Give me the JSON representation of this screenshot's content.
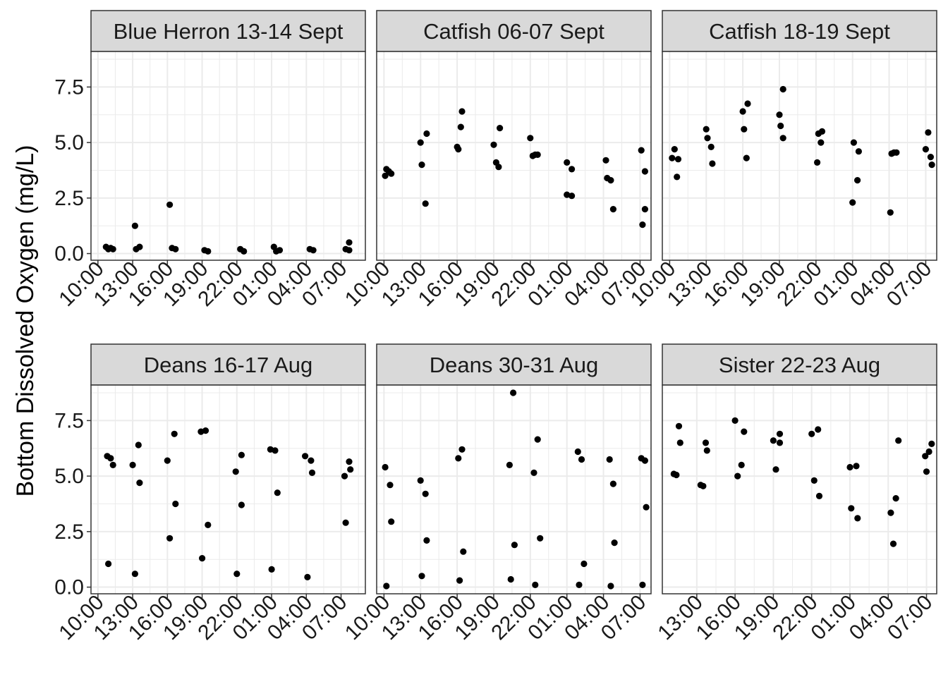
{
  "y_axis_title": "Bottom Dissolved Oxygen (mg/L)",
  "colors": {
    "point": "#000000",
    "strip_fill": "#d9d9d9",
    "grid": "#ebebeb",
    "frame": "#333333"
  },
  "chart_data": {
    "type": "scatter",
    "layout": "facet_wrap 2 rows x 3 columns",
    "ylabel": "Bottom Dissolved Oxygen (mg/L)",
    "ylim": [
      -0.3,
      9.1
    ],
    "yticks": [
      0.0,
      2.5,
      5.0,
      7.5
    ],
    "ytick_labels": [
      "0.0",
      "2.5",
      "5.0",
      "7.5"
    ],
    "x_unit": "hours since 10:00 on day 1 of each sampling event",
    "grid": true,
    "panels": [
      {
        "title": "Blue Herron 13-14 Sept",
        "xlim": [
          -0.6,
          23.1
        ],
        "xticks": [
          {
            "x": 0,
            "label": "10:00"
          },
          {
            "x": 3,
            "label": "13:00"
          },
          {
            "x": 6,
            "label": "16:00"
          },
          {
            "x": 9,
            "label": "19:00"
          },
          {
            "x": 12,
            "label": "22:00"
          },
          {
            "x": 15,
            "label": "01:00"
          },
          {
            "x": 18,
            "label": "04:00"
          },
          {
            "x": 21,
            "label": "07:00"
          }
        ],
        "points": [
          [
            0.7,
            0.3
          ],
          [
            0.9,
            0.2
          ],
          [
            1.1,
            0.25
          ],
          [
            1.3,
            0.2
          ],
          [
            3.2,
            1.25
          ],
          [
            3.3,
            0.2
          ],
          [
            3.6,
            0.3
          ],
          [
            6.2,
            2.2
          ],
          [
            6.4,
            0.25
          ],
          [
            6.7,
            0.2
          ],
          [
            9.2,
            0.15
          ],
          [
            9.5,
            0.1
          ],
          [
            12.3,
            0.2
          ],
          [
            12.6,
            0.1
          ],
          [
            15.2,
            0.3
          ],
          [
            15.4,
            0.1
          ],
          [
            15.7,
            0.15
          ],
          [
            18.3,
            0.2
          ],
          [
            18.6,
            0.15
          ],
          [
            21.4,
            0.2
          ],
          [
            21.7,
            0.5
          ],
          [
            21.7,
            0.15
          ]
        ]
      },
      {
        "title": "Catfish 06-07 Sept",
        "xlim": [
          -0.6,
          21.9
        ],
        "xticks": [
          {
            "x": 0,
            "label": "10:00"
          },
          {
            "x": 3,
            "label": "13:00"
          },
          {
            "x": 6,
            "label": "16:00"
          },
          {
            "x": 9,
            "label": "19:00"
          },
          {
            "x": 12,
            "label": "22:00"
          },
          {
            "x": 15,
            "label": "01:00"
          },
          {
            "x": 18,
            "label": "04:00"
          },
          {
            "x": 21,
            "label": "07:00"
          }
        ],
        "points": [
          [
            0.1,
            3.5
          ],
          [
            0.2,
            3.8
          ],
          [
            0.4,
            3.7
          ],
          [
            0.6,
            3.6
          ],
          [
            3.0,
            5.0
          ],
          [
            3.1,
            4.0
          ],
          [
            3.4,
            2.25
          ],
          [
            3.5,
            5.4
          ],
          [
            6.0,
            4.8
          ],
          [
            6.1,
            4.7
          ],
          [
            6.3,
            5.7
          ],
          [
            6.4,
            6.4
          ],
          [
            9.0,
            4.9
          ],
          [
            9.2,
            4.1
          ],
          [
            9.4,
            3.9
          ],
          [
            9.5,
            5.65
          ],
          [
            12.0,
            5.2
          ],
          [
            12.2,
            4.4
          ],
          [
            12.4,
            4.45
          ],
          [
            12.6,
            4.45
          ],
          [
            15.0,
            4.1
          ],
          [
            15.0,
            2.65
          ],
          [
            15.4,
            2.6
          ],
          [
            15.4,
            3.8
          ],
          [
            18.2,
            4.2
          ],
          [
            18.3,
            3.4
          ],
          [
            18.6,
            3.3
          ],
          [
            18.8,
            2.0
          ],
          [
            21.1,
            4.65
          ],
          [
            21.2,
            1.3
          ],
          [
            21.4,
            3.7
          ],
          [
            21.4,
            2.0
          ]
        ]
      },
      {
        "title": "Catfish 18-19 Sept",
        "xlim": [
          -0.6,
          21.9
        ],
        "xticks": [
          {
            "x": 0,
            "label": "10:00"
          },
          {
            "x": 3,
            "label": "13:00"
          },
          {
            "x": 6,
            "label": "16:00"
          },
          {
            "x": 9,
            "label": "19:00"
          },
          {
            "x": 12,
            "label": "22:00"
          },
          {
            "x": 15,
            "label": "01:00"
          },
          {
            "x": 18,
            "label": "04:00"
          },
          {
            "x": 21,
            "label": "07:00"
          }
        ],
        "points": [
          [
            0.2,
            4.3
          ],
          [
            0.4,
            4.7
          ],
          [
            0.6,
            3.45
          ],
          [
            0.7,
            4.25
          ],
          [
            3.0,
            5.6
          ],
          [
            3.1,
            5.2
          ],
          [
            3.4,
            4.8
          ],
          [
            3.5,
            4.05
          ],
          [
            6.0,
            6.4
          ],
          [
            6.1,
            5.6
          ],
          [
            6.3,
            4.3
          ],
          [
            6.4,
            6.75
          ],
          [
            9.0,
            6.25
          ],
          [
            9.1,
            5.75
          ],
          [
            9.3,
            5.2
          ],
          [
            9.3,
            7.4
          ],
          [
            12.1,
            4.1
          ],
          [
            12.2,
            5.4
          ],
          [
            12.4,
            5.0
          ],
          [
            12.5,
            5.5
          ],
          [
            15.0,
            2.3
          ],
          [
            15.1,
            5.0
          ],
          [
            15.4,
            3.3
          ],
          [
            15.5,
            4.6
          ],
          [
            18.1,
            1.85
          ],
          [
            18.2,
            4.5
          ],
          [
            18.4,
            4.55
          ],
          [
            18.6,
            4.55
          ],
          [
            21.0,
            4.7
          ],
          [
            21.2,
            5.45
          ],
          [
            21.4,
            4.35
          ],
          [
            21.5,
            4.0
          ]
        ]
      },
      {
        "title": "Deans 16-17 Aug",
        "xlim": [
          -0.6,
          23.1
        ],
        "xticks": [
          {
            "x": 0,
            "label": "10:00"
          },
          {
            "x": 3,
            "label": "13:00"
          },
          {
            "x": 6,
            "label": "16:00"
          },
          {
            "x": 9,
            "label": "19:00"
          },
          {
            "x": 12,
            "label": "22:00"
          },
          {
            "x": 15,
            "label": "01:00"
          },
          {
            "x": 18,
            "label": "04:00"
          },
          {
            "x": 21,
            "label": "07:00"
          }
        ],
        "points": [
          [
            0.8,
            5.9
          ],
          [
            0.9,
            1.05
          ],
          [
            1.1,
            5.8
          ],
          [
            1.3,
            5.5
          ],
          [
            3.0,
            5.5
          ],
          [
            3.2,
            0.6
          ],
          [
            3.5,
            6.4
          ],
          [
            3.6,
            4.7
          ],
          [
            6.0,
            5.7
          ],
          [
            6.2,
            2.2
          ],
          [
            6.6,
            6.9
          ],
          [
            6.7,
            3.75
          ],
          [
            8.9,
            7.0
          ],
          [
            9.0,
            1.3
          ],
          [
            9.3,
            7.05
          ],
          [
            9.5,
            2.8
          ],
          [
            11.9,
            5.2
          ],
          [
            12.0,
            0.6
          ],
          [
            12.4,
            5.95
          ],
          [
            12.4,
            3.7
          ],
          [
            14.9,
            6.2
          ],
          [
            15.0,
            0.8
          ],
          [
            15.3,
            6.15
          ],
          [
            15.5,
            4.25
          ],
          [
            17.9,
            5.9
          ],
          [
            18.1,
            0.45
          ],
          [
            18.4,
            5.7
          ],
          [
            18.5,
            5.15
          ],
          [
            21.3,
            5.0
          ],
          [
            21.4,
            2.9
          ],
          [
            21.7,
            5.65
          ],
          [
            21.8,
            5.3
          ]
        ]
      },
      {
        "title": "Deans 30-31 Aug",
        "xlim": [
          -0.6,
          21.9
        ],
        "xticks": [
          {
            "x": 0,
            "label": "10:00"
          },
          {
            "x": 3,
            "label": "13:00"
          },
          {
            "x": 6,
            "label": "16:00"
          },
          {
            "x": 9,
            "label": "19:00"
          },
          {
            "x": 12,
            "label": "22:00"
          },
          {
            "x": 15,
            "label": "01:00"
          },
          {
            "x": 18,
            "label": "04:00"
          },
          {
            "x": 21,
            "label": "07:00"
          }
        ],
        "points": [
          [
            0.1,
            5.4
          ],
          [
            0.2,
            0.05
          ],
          [
            0.5,
            4.6
          ],
          [
            0.6,
            2.95
          ],
          [
            3.0,
            4.8
          ],
          [
            3.1,
            0.5
          ],
          [
            3.4,
            4.2
          ],
          [
            3.5,
            2.1
          ],
          [
            6.1,
            5.8
          ],
          [
            6.2,
            0.3
          ],
          [
            6.4,
            6.2
          ],
          [
            6.5,
            1.6
          ],
          [
            10.3,
            5.5
          ],
          [
            10.4,
            0.35
          ],
          [
            10.6,
            8.75
          ],
          [
            10.7,
            1.9
          ],
          [
            12.3,
            5.15
          ],
          [
            12.4,
            0.1
          ],
          [
            12.6,
            6.65
          ],
          [
            12.8,
            2.2
          ],
          [
            15.9,
            6.1
          ],
          [
            16.0,
            0.1
          ],
          [
            16.2,
            5.75
          ],
          [
            16.4,
            1.05
          ],
          [
            18.5,
            5.75
          ],
          [
            18.6,
            0.05
          ],
          [
            18.8,
            4.65
          ],
          [
            18.9,
            2.0
          ],
          [
            21.1,
            5.8
          ],
          [
            21.2,
            0.1
          ],
          [
            21.4,
            5.7
          ],
          [
            21.5,
            3.6
          ]
        ]
      },
      {
        "title": "Sister 22-23 Aug",
        "xlim": [
          0.3,
          21.8
        ],
        "xticks": [
          {
            "x": 3,
            "label": "13:00"
          },
          {
            "x": 6,
            "label": "16:00"
          },
          {
            "x": 9,
            "label": "19:00"
          },
          {
            "x": 12,
            "label": "22:00"
          },
          {
            "x": 15,
            "label": "01:00"
          },
          {
            "x": 18,
            "label": "04:00"
          },
          {
            "x": 21,
            "label": "07:00"
          }
        ],
        "points": [
          [
            1.2,
            5.1
          ],
          [
            1.4,
            5.05
          ],
          [
            1.6,
            7.25
          ],
          [
            1.7,
            6.5
          ],
          [
            3.3,
            4.6
          ],
          [
            3.5,
            4.55
          ],
          [
            3.7,
            6.5
          ],
          [
            3.8,
            6.15
          ],
          [
            6.0,
            7.5
          ],
          [
            6.2,
            5.0
          ],
          [
            6.5,
            5.5
          ],
          [
            6.7,
            7.0
          ],
          [
            9.0,
            6.6
          ],
          [
            9.2,
            5.3
          ],
          [
            9.5,
            6.9
          ],
          [
            9.5,
            6.5
          ],
          [
            12.0,
            6.9
          ],
          [
            12.2,
            4.8
          ],
          [
            12.5,
            7.1
          ],
          [
            12.6,
            4.1
          ],
          [
            15.0,
            5.4
          ],
          [
            15.1,
            3.55
          ],
          [
            15.5,
            5.45
          ],
          [
            15.6,
            3.1
          ],
          [
            18.2,
            3.35
          ],
          [
            18.4,
            1.95
          ],
          [
            18.6,
            4.0
          ],
          [
            18.8,
            6.6
          ],
          [
            20.9,
            5.9
          ],
          [
            21.0,
            5.2
          ],
          [
            21.2,
            6.1
          ],
          [
            21.4,
            6.45
          ]
        ]
      }
    ]
  }
}
